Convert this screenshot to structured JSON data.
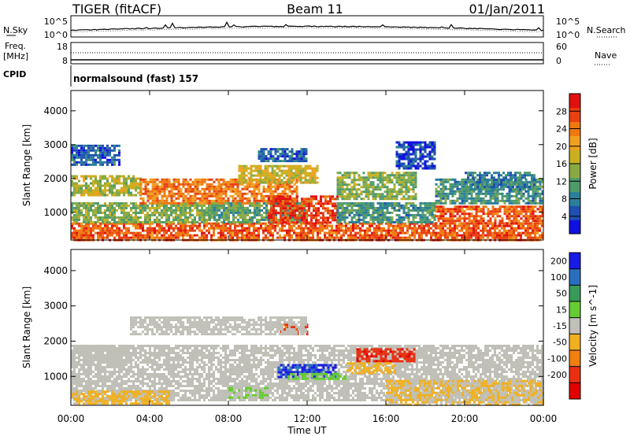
{
  "header": {
    "title": "TIGER (fitACF)",
    "beam": "Beam 11",
    "date": "01/Jan/2011"
  },
  "status_panels": {
    "nsky_label": "N.Sky",
    "nsearch_label": "N.Search",
    "freq_label_line1": "Freq.",
    "freq_label_line2": "[MHz]",
    "nave_label": "Nave",
    "cpid_label": "CPID",
    "cpid_text": "normalsound (fast) 157",
    "noise_ticks": [
      "10^5",
      "10^0"
    ],
    "freq_ticks": [
      "18",
      "8"
    ],
    "nave_ticks": [
      "60",
      "0"
    ]
  },
  "chart_data": [
    {
      "type": "heatmap",
      "name": "power",
      "ylabel": "Slant Range [km]",
      "xlabel": "",
      "ylim": [
        180,
        4600
      ],
      "yticks": [
        1000,
        2000,
        3000,
        4000
      ],
      "xlim": [
        0,
        24
      ],
      "xticks": [
        "00:00",
        "04:00",
        "08:00",
        "12:00",
        "16:00",
        "20:00",
        "00:00"
      ],
      "colorbar": {
        "label": "Power [dB]",
        "range": [
          0,
          32
        ],
        "ticks": [
          4,
          8,
          12,
          16,
          20,
          24,
          28
        ],
        "colors": [
          "#1010e0",
          "#1f4fb0",
          "#2a7f9a",
          "#4f9a6a",
          "#88aa44",
          "#c8b020",
          "#f0a020",
          "#f07810",
          "#e84010",
          "#e01010"
        ]
      },
      "regions": [
        {
          "t0": 0.0,
          "t1": 24.0,
          "r0": 180,
          "r1": 700,
          "level": 26
        },
        {
          "t0": 0.0,
          "t1": 7.0,
          "r0": 700,
          "r1": 1300,
          "level": 14
        },
        {
          "t0": 0.0,
          "t1": 3.5,
          "r0": 1500,
          "r1": 2100,
          "level": 16
        },
        {
          "t0": 3.5,
          "t1": 11.5,
          "r0": 1300,
          "r1": 2000,
          "level": 24
        },
        {
          "t0": 7.0,
          "t1": 12.0,
          "r0": 700,
          "r1": 1300,
          "level": 12
        },
        {
          "t0": 10.0,
          "t1": 13.5,
          "r0": 700,
          "r1": 1500,
          "level": 28
        },
        {
          "t0": 8.5,
          "t1": 12.5,
          "r0": 1900,
          "r1": 2400,
          "level": 18
        },
        {
          "t0": 13.5,
          "t1": 18.5,
          "r0": 700,
          "r1": 1300,
          "level": 10
        },
        {
          "t0": 13.5,
          "t1": 17.5,
          "r0": 1400,
          "r1": 2200,
          "level": 14
        },
        {
          "t0": 18.5,
          "t1": 24.0,
          "r0": 700,
          "r1": 1200,
          "level": 26
        },
        {
          "t0": 18.5,
          "t1": 24.0,
          "r0": 1300,
          "r1": 2000,
          "level": 10
        },
        {
          "t0": 0.0,
          "t1": 2.5,
          "r0": 2400,
          "r1": 3000,
          "level": 6
        },
        {
          "t0": 9.5,
          "t1": 12.0,
          "r0": 2500,
          "r1": 2900,
          "level": 6
        },
        {
          "t0": 16.5,
          "t1": 18.5,
          "r0": 2300,
          "r1": 3100,
          "level": 4
        },
        {
          "t0": 20.0,
          "t1": 23.5,
          "r0": 1700,
          "r1": 2200,
          "level": 8
        }
      ]
    },
    {
      "type": "heatmap",
      "name": "velocity",
      "ylabel": "Slant Range [km]",
      "xlabel": "Time UT",
      "ylim": [
        180,
        4600
      ],
      "yticks": [
        1000,
        2000,
        3000,
        4000
      ],
      "xlim": [
        0,
        24
      ],
      "xticks": [
        "00:00",
        "04:00",
        "08:00",
        "12:00",
        "16:00",
        "20:00",
        "00:00"
      ],
      "colorbar": {
        "label": "Velocity [m s^-1]",
        "range": [
          -250,
          250
        ],
        "ticks": [
          200,
          100,
          50,
          15,
          -15,
          -50,
          -100,
          -200
        ],
        "colors": [
          "#1a1ae6",
          "#2a6fbf",
          "#3a9a5a",
          "#66cc33",
          "#c0c0b8",
          "#f0b020",
          "#f08010",
          "#e83010",
          "#e00000"
        ]
      },
      "regions": [
        {
          "t0": 0.0,
          "t1": 24.0,
          "r0": 300,
          "r1": 1900,
          "level": 0
        },
        {
          "t0": 0.0,
          "t1": 5.0,
          "r0": 200,
          "r1": 600,
          "level": -40
        },
        {
          "t0": 0.0,
          "t1": 3.0,
          "r0": 1300,
          "r1": 1900,
          "level": 0
        },
        {
          "t0": 8.0,
          "t1": 10.0,
          "r0": 400,
          "r1": 700,
          "level": 30
        },
        {
          "t0": 10.5,
          "t1": 13.5,
          "r0": 1000,
          "r1": 1350,
          "level": 200
        },
        {
          "t0": 11.0,
          "t1": 14.0,
          "r0": 900,
          "r1": 1100,
          "level": 40
        },
        {
          "t0": 14.5,
          "t1": 17.5,
          "r0": 1400,
          "r1": 1800,
          "level": -180
        },
        {
          "t0": 14.0,
          "t1": 16.5,
          "r0": 1100,
          "r1": 1400,
          "level": -40
        },
        {
          "t0": 10.5,
          "t1": 12.0,
          "r0": 2200,
          "r1": 2500,
          "level": -150
        },
        {
          "t0": 16.0,
          "t1": 24.0,
          "r0": 200,
          "r1": 900,
          "level": -30
        },
        {
          "t0": 3.0,
          "t1": 12.0,
          "r0": 2200,
          "r1": 2700,
          "level": 0
        }
      ]
    }
  ]
}
